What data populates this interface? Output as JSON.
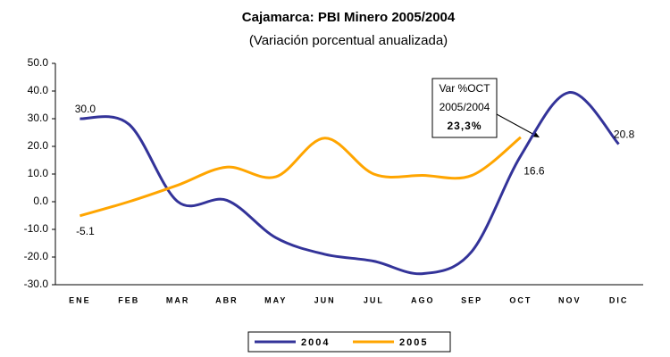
{
  "chart_data": {
    "type": "line",
    "title": "Cajamarca: PBI Minero 2005/2004",
    "subtitle": "(Variación porcentual anualizada)",
    "categories": [
      "ENE",
      "FEB",
      "MAR",
      "ABR",
      "MAY",
      "JUN",
      "JUL",
      "AGO",
      "SEP",
      "OCT",
      "NOV",
      "DIC"
    ],
    "series": [
      {
        "name": "2004",
        "color": "#333399",
        "values": [
          30.0,
          28,
          0,
          0.5,
          -13,
          -19,
          -21.5,
          -26,
          -18,
          16.6,
          39.5,
          20.8
        ],
        "value_labels": [
          "30.0",
          null,
          null,
          null,
          null,
          null,
          null,
          null,
          null,
          "16.6",
          null,
          "20.8"
        ]
      },
      {
        "name": "2005",
        "color": "#ffa500",
        "values": [
          -5.1,
          0,
          6,
          12.5,
          9,
          23,
          10,
          9.5,
          9.5,
          23.3,
          null,
          null
        ],
        "value_labels": [
          "-5.1",
          null,
          null,
          null,
          null,
          null,
          null,
          null,
          null,
          null,
          null,
          null
        ]
      }
    ],
    "annotation": [
      "Var %OCT",
      "2005/2004",
      "23,3%"
    ],
    "ylim": [
      -30,
      50
    ],
    "yticks": [
      {
        "value": -30,
        "label": "-30.0"
      },
      {
        "value": -20,
        "label": "-20.0"
      },
      {
        "value": -10,
        "label": "-10.0"
      },
      {
        "value": 0,
        "label": "0.0"
      },
      {
        "value": 10,
        "label": "10.0"
      },
      {
        "value": 20,
        "label": "20.0"
      },
      {
        "value": 30,
        "label": "30.0"
      },
      {
        "value": 40,
        "label": "40.0"
      },
      {
        "value": 50,
        "label": "50.0"
      }
    ],
    "legend": "bottom"
  }
}
